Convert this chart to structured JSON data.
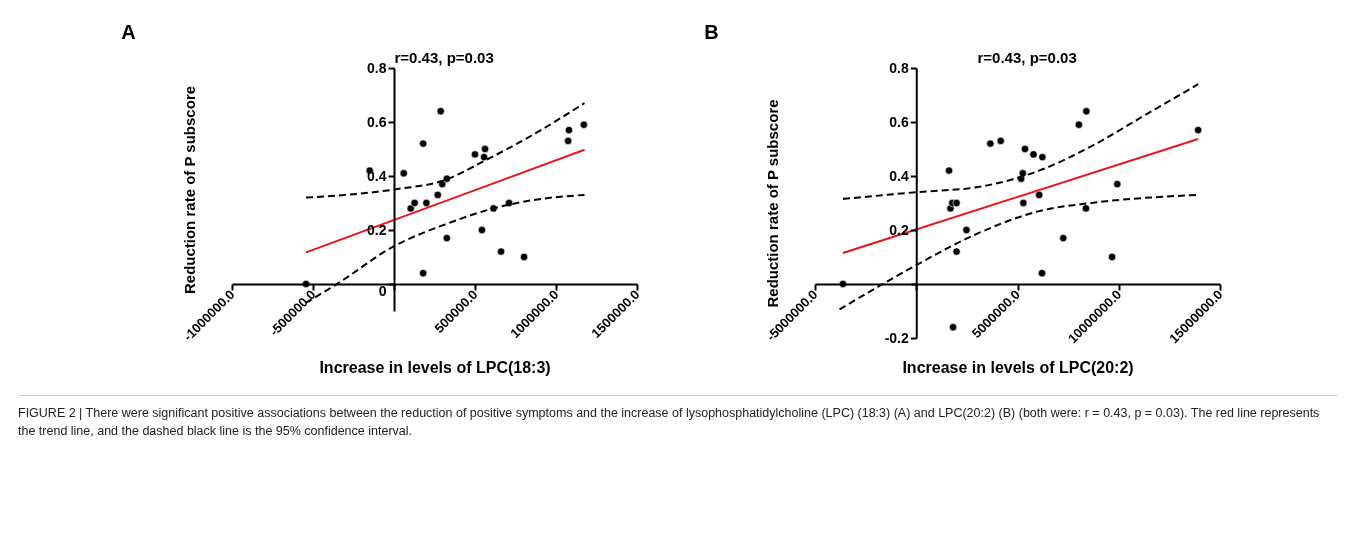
{
  "chart_data": [
    {
      "type": "scatter",
      "title": "A",
      "xlabel": "Increase in levels of LPC(18:3)",
      "ylabel": "Reduction rate of P subscore",
      "annotations": [
        "r=0.43, p=0.03",
        "FIGURE 2 | There were significant positive associations between the reduction of positive symptoms and the increase of lysophosphatidylcholine (LPC) (18:3) (A) and LPC(20:2) (B) (both were: r = 0.43, p = 0.03). The red line represents the trend line, and the dashed black line is the 95% confidence interval."
      ],
      "xlim": [
        -1000000,
        1500000
      ],
      "ylim": [
        -0.1,
        0.8
      ],
      "xticks": [
        {
          "value": -1000000,
          "label": "-1000000.0"
        },
        {
          "value": -500000,
          "label": "-500000.0"
        },
        {
          "value": 0,
          "label": null
        },
        {
          "value": 500000,
          "label": "500000.0"
        },
        {
          "value": 1000000,
          "label": "1000000.0"
        },
        {
          "value": 1500000,
          "label": "1500000.0"
        }
      ],
      "yticks": [
        0,
        0.2,
        0.4,
        0.6,
        0.8
      ],
      "grid": false,
      "marker": "circle",
      "series": [
        {
          "type": "scatter",
          "color": "#000000",
          "x": [
            -543000,
            -150000,
            60000,
            180000,
            288000,
            103000,
            127000,
            200000,
            180000,
            270000,
            298000,
            326000,
            326000,
            500000,
            562000,
            556000,
            543000,
            614000,
            710000,
            661000,
            803000,
            1075000,
            1080000,
            1172000
          ],
          "values": [
            0.0,
            0.42,
            0.41,
            0.52,
            0.64,
            0.28,
            0.3,
            0.3,
            0.04,
            0.33,
            0.37,
            0.39,
            0.17,
            0.48,
            0.5,
            0.47,
            0.2,
            0.28,
            0.3,
            0.12,
            0.1,
            0.53,
            0.57,
            0.59
          ]
        },
        {
          "type": "line",
          "color": "#e8141b",
          "line_style": "solid",
          "marker": "none",
          "x": [
            -543000,
            1176000
          ],
          "values": [
            0.117,
            0.497
          ]
        },
        {
          "type": "line",
          "color": "#000000",
          "line_style": "dashed",
          "marker": "none",
          "x": [
            -543000,
            0,
            313000,
            570000,
            850000,
            1176000
          ],
          "values": [
            0.32,
            0.35,
            0.385,
            0.46,
            0.55,
            0.67
          ]
        },
        {
          "type": "line",
          "color": "#000000",
          "line_style": "dashed",
          "marker": "none",
          "x": [
            -545000,
            -352000,
            0,
            313000,
            614000,
            850000,
            1176000
          ],
          "values": [
            -0.07,
            0.0,
            0.14,
            0.22,
            0.28,
            0.31,
            0.33
          ]
        }
      ]
    },
    {
      "type": "scatter",
      "title": "B",
      "xlabel": "Increase in levels of LPC(20:2)",
      "ylabel": "Reduction rate of P subscore",
      "annotations": [
        "r=0.43, p=0.03"
      ],
      "xlim": [
        -5000000,
        15000000
      ],
      "ylim": [
        -0.2,
        0.8
      ],
      "xticks": [
        {
          "value": -5000000,
          "label": "-5000000.0"
        },
        {
          "value": 0,
          "label": null
        },
        {
          "value": 5000000,
          "label": "5000000.0"
        },
        {
          "value": 10000000,
          "label": "10000000.0"
        },
        {
          "value": 15000000,
          "label": "15000000.0"
        }
      ],
      "yticks": [
        -0.2,
        {
          "value": 0,
          "label": null
        },
        0.2,
        0.4,
        0.6,
        0.8
      ],
      "grid": false,
      "marker": "circle",
      "series": [
        {
          "type": "scatter",
          "color": "#000000",
          "x": [
            -3620000,
            1620000,
            1690000,
            1780000,
            1990000,
            1990000,
            2480000,
            3660000,
            4170000,
            5180000,
            5260000,
            5290000,
            5370000,
            5790000,
            6070000,
            6230000,
            6210000,
            7260000,
            8030000,
            8400000,
            8380000,
            9670000,
            9930000,
            13920000,
            1820000
          ],
          "values": [
            0.0,
            0.42,
            0.28,
            0.3,
            0.3,
            0.12,
            0.2,
            0.52,
            0.53,
            0.39,
            0.41,
            0.3,
            0.5,
            0.48,
            0.33,
            0.47,
            0.04,
            0.17,
            0.59,
            0.64,
            0.28,
            0.1,
            0.37,
            0.57,
            -0.16
          ]
        },
        {
          "type": "line",
          "color": "#e8141b",
          "line_style": "solid",
          "marker": "none",
          "x": [
            -3620000,
            13920000
          ],
          "values": [
            0.115,
            0.537
          ]
        },
        {
          "type": "line",
          "color": "#000000",
          "line_style": "dashed",
          "marker": "none",
          "x": [
            -3620000,
            0,
            3120000,
            6070000,
            8640000,
            11400000,
            13920000
          ],
          "values": [
            0.315,
            0.34,
            0.36,
            0.42,
            0.51,
            0.63,
            0.74
          ]
        },
        {
          "type": "line",
          "color": "#000000",
          "line_style": "dashed",
          "marker": "none",
          "x": [
            -3790000,
            -1650000,
            0,
            3120000,
            6070000,
            8640000,
            13920000
          ],
          "values": [
            -0.094,
            0.0,
            0.07,
            0.19,
            0.27,
            0.3,
            0.33
          ]
        }
      ]
    }
  ]
}
